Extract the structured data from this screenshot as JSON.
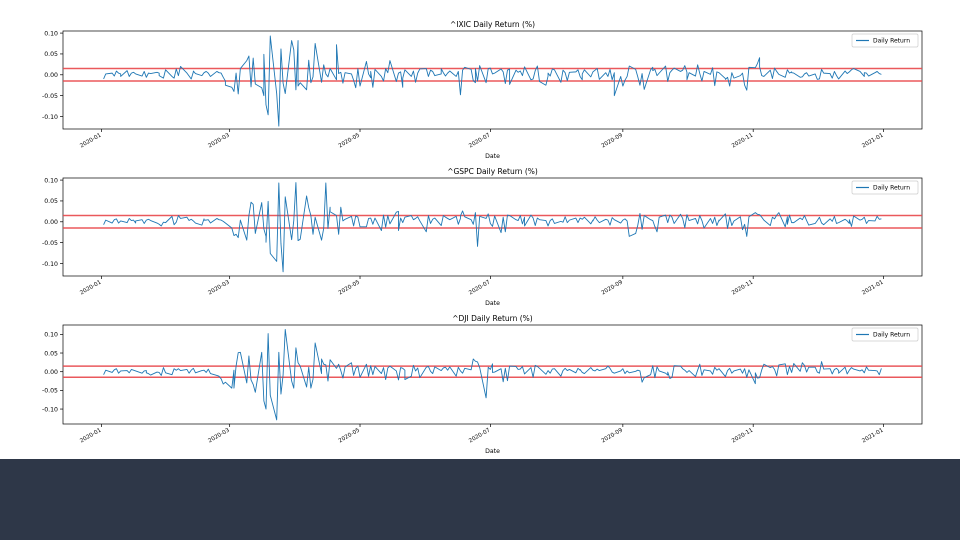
{
  "colors": {
    "line": "#1f77b4",
    "threshold": "#e8474b",
    "footer": "#2e3748",
    "axis": "#000000"
  },
  "chart_data": [
    {
      "type": "line",
      "title": "^IXIC Daily Return (%)",
      "xlabel": "Date",
      "ylabel": "",
      "legend": "Daily Return",
      "legend_position": "top-right",
      "grid": false,
      "x_ticks": [
        "2020-01",
        "2020-03",
        "2020-05",
        "2020-07",
        "2020-09",
        "2020-11",
        "2021-01"
      ],
      "y_ticks": [
        "0.10",
        "0.05",
        "0.00",
        "-0.05",
        "-0.10"
      ],
      "xlim": [
        "2019-12-14",
        "2021-01-19"
      ],
      "ylim": [
        -0.13,
        0.105
      ],
      "thresholds": [
        0.015,
        -0.015
      ],
      "start_date": "2020-01-02",
      "end_date": "2020-12-31",
      "values": [
        -0.01,
        0.002,
        0.004,
        -0.003,
        0.009,
        0.004,
        0.002,
        -0.004,
        0.01,
        -0.004,
        0.004,
        0.006,
        0.002,
        -0.003,
        0.008,
        -0.006,
        0.004,
        0.003,
        0.006,
        0.004,
        -0.002,
        -0.005,
        -0.008,
        0.012,
        -0.004,
        -0.008,
        0.014,
        -0.002,
        0.02,
        0.004,
        -0.003,
        -0.01,
        0.007,
        0.009,
        0.003,
        -0.002,
        0.005,
        0.008,
        0.004,
        -0.004,
        0.008,
        0.005,
        0.004,
        -0.006,
        -0.015,
        -0.025,
        -0.03,
        -0.04,
        0.004,
        -0.046,
        0.015,
        0.034,
        0.045,
        -0.029,
        0.04,
        -0.022,
        -0.031,
        -0.05,
        0.049,
        -0.072,
        -0.096,
        0.093,
        -0.045,
        -0.123,
        0.062,
        -0.02,
        -0.045,
        0.082,
        0.06,
        -0.036,
        0.082,
        -0.027,
        -0.019,
        -0.036,
        0.035,
        -0.019,
        -0.005,
        0.075,
        -0.018,
        0.024,
        0.002,
        -0.005,
        0.015,
        -0.012,
        0.072,
        0.003,
        0.006,
        -0.02,
        0.005,
        0.002,
        -0.013,
        -0.031,
        0.015,
        -0.027,
        0.032,
        0.002,
        -0.007,
        0.008,
        -0.03,
        0.013,
        -0.004,
        -0.015,
        0.015,
        0.005,
        0.034,
        -0.016,
        0.004,
        0.007,
        -0.03,
        -0.008,
        0.012,
        -0.004,
        0.009,
        -0.018,
        0.004,
        0.014,
        0.015,
        -0.004,
        0.011,
        0.008,
        -0.002,
        0.002,
        0.015,
        0.005,
        -0.003,
        0.004,
        0.009,
        -0.004,
        0.008,
        -0.048,
        0.011,
        0.018,
        0.013,
        -0.014,
        -0.019,
        0.015,
        -0.015,
        0.022,
        -0.019,
        0.015,
        0.016,
        0.002,
        0.004,
        0.014,
        0.007,
        -0.021,
        0.011,
        0.014,
        -0.023,
        0.011,
        0.006,
        0.009,
        -0.002,
        0.019,
        -0.012,
        -0.01,
        0.01,
        0.021,
        -0.016,
        -0.025,
        -0.003,
        0.004,
        -0.003,
        0.014,
        0.012,
        -0.018,
        0.011,
        0.005,
        -0.014,
        0.006,
        0.007,
        0.012,
        -0.004,
        -0.012,
        0.002,
        0.012,
        -0.005,
        0.007,
        0.011,
        0.015,
        -0.011,
        0.005,
        -0.004,
        0.013,
        -0.012,
        0.005,
        -0.05,
        -0.004,
        -0.027,
        -0.013,
        -0.004,
        0.021,
        0.013,
        -0.005,
        -0.025,
        0.003,
        -0.035,
        0.012,
        0.018,
        0.01,
        0.013,
        -0.002,
        0.004,
        0.021,
        -0.016,
        0.005,
        0.011,
        0.016,
        0.008,
        0.011,
        0.022,
        0.006,
        -0.012,
        0.005,
        -0.003,
        0.024,
        0.003,
        -0.015,
        0.008,
        0.001,
        0.017,
        -0.026,
        0.007,
        0.005,
        -0.009,
        -0.011,
        -0.006,
        -0.027,
        0.005,
        -0.008,
        -0.002,
        0.004,
        -0.025,
        -0.037,
        0.018,
        0.017,
        0.027,
        0.041,
        0.019,
        -0.002,
        -0.004,
        0.011,
        -0.009,
        0.016,
        0.008,
        0.001,
        -0.006,
        0.012,
        0.004,
        0.007,
        0.005,
        0.004,
        -0.006,
        -0.005,
        0.002,
        0.005,
        -0.003,
        0.002,
        -0.011,
        -0.01,
        0.013,
        0.004,
        0.003,
        0.002,
        -0.008,
        0.008,
        -0.002,
        -0.01,
        0.009,
        0.003,
        0.007,
        0.012,
        0.015,
        0.008,
        0.002,
        -0.004,
        0.005,
        0.004,
        -0.003,
        0.005,
        0.008,
        0.003,
        0.001
      ],
      "series": [
        {
          "name": "Daily Return"
        }
      ]
    },
    {
      "type": "line",
      "title": "^GSPC Daily Return (%)",
      "xlabel": "Date",
      "ylabel": "",
      "legend": "Daily Return",
      "legend_position": "top-right",
      "grid": false,
      "x_ticks": [
        "2020-01",
        "2020-03",
        "2020-05",
        "2020-07",
        "2020-09",
        "2020-11",
        "2021-01"
      ],
      "y_ticks": [
        "0.10",
        "0.05",
        "0.00",
        "-0.05",
        "-0.10"
      ],
      "xlim": [
        "2019-12-14",
        "2021-01-19"
      ],
      "ylim": [
        -0.13,
        0.105
      ],
      "thresholds": [
        0.015,
        -0.015
      ],
      "start_date": "2020-01-02",
      "end_date": "2020-12-31",
      "values": [
        -0.007,
        0.004,
        -0.003,
        0.005,
        0.007,
        -0.003,
        0.002,
        -0.002,
        0.008,
        0.003,
        0.004,
        -0.003,
        0.002,
        0.005,
        -0.004,
        0.004,
        0.006,
        0.003,
        -0.003,
        -0.006,
        -0.01,
        -0.001,
        -0.002,
        0.013,
        -0.007,
        -0.001,
        0.015,
        0.008,
        0.011,
        0.003,
        0.006,
        0.002,
        -0.003,
        -0.008,
        0.007,
        0.004,
        0.004,
        0.005,
        -0.003,
        0.008,
        0.005,
        0.004,
        0.001,
        -0.003,
        -0.015,
        -0.033,
        -0.03,
        -0.038,
        0.004,
        -0.044,
        0.015,
        0.047,
        0.042,
        -0.028,
        0.046,
        -0.017,
        -0.035,
        -0.049,
        0.049,
        -0.076,
        -0.095,
        0.093,
        -0.052,
        -0.12,
        0.06,
        -0.043,
        0.003,
        0.094,
        -0.045,
        -0.042,
        0.062,
        0.034,
        0.015,
        -0.03,
        0.011,
        -0.044,
        -0.016,
        0.093,
        -0.016,
        0.035,
        0.024,
        0.015,
        -0.03,
        0.035,
        0.002,
        0.006,
        0.013,
        -0.01,
        0.014,
        0.011,
        -0.012,
        -0.012,
        0.008,
        0.009,
        -0.006,
        0.009,
        -0.021,
        0.016,
        -0.013,
        0.015,
        -0.005,
        0.023,
        0.025,
        -0.021,
        0.009,
        -0.002,
        0.011,
        0.015,
        0.005,
        0.008,
        0.012,
        0.002,
        -0.024,
        0.015,
        -0.004,
        0.006,
        0.009,
        -0.009,
        0.015,
        0.011,
        0.008,
        0.005,
        0.013,
        -0.006,
        0.008,
        0.014,
        0.026,
        0.012,
        0.005,
        -0.006,
        0.022,
        -0.059,
        0.013,
        0.008,
        0.019,
        -0.004,
        -0.011,
        0.014,
        -0.026,
        0.011,
        -0.024,
        0.016,
        0.015,
        0.005,
        0.003,
        0.015,
        -0.005,
        0.011,
        -0.01,
        0.016,
        0.009,
        -0.009,
        0.009,
        0.005,
        0.003,
        -0.01,
        0.003,
        0.007,
        -0.004,
        0.001,
        -0.001,
        0.012,
        -0.002,
        0.004,
        0.009,
        -0.002,
        0.009,
        0.006,
        0.011,
        -0.005,
        0.004,
        0.002,
        0.012,
        0.004,
        -0.002,
        0.006,
        0.004,
        -0.008,
        0.01,
        0.005,
        -0.003,
        0.004,
        0.007,
        0.002,
        -0.035,
        -0.028,
        -0.008,
        0.02,
        -0.018,
        0.015,
        0.005,
        0.003,
        -0.012,
        -0.011,
        -0.024,
        0.011,
        0.016,
        -0.002,
        0.016,
        0.011,
        -0.004,
        0.018,
        0.008,
        -0.014,
        0.017,
        0.003,
        0.008,
        -0.005,
        0.015,
        0.003,
        -0.015,
        0.008,
        -0.004,
        0.011,
        -0.009,
        0.004,
        0.002,
        0.019,
        -0.016,
        0.012,
        -0.009,
        0.002,
        0.012,
        -0.019,
        -0.006,
        -0.035,
        0.012,
        0.022,
        0.018,
        0.017,
        0.011,
        0.004,
        -0.009,
        0.011,
        0.007,
        0.016,
        0.022,
        -0.012,
        0.012,
        -0.006,
        0.016,
        -0.002,
        -0.002,
        0.009,
        0.005,
        0.015,
        0.003,
        -0.008,
        -0.004,
        0.003,
        0.011,
        -0.003,
        -0.007,
        0.007,
        0.001,
        0.013,
        -0.004,
        -0.002,
        0.006,
        0.002,
        -0.004,
        0.005,
        -0.011,
        0.014,
        0.004,
        0.006,
        0.011,
        -0.004,
        0.003,
        0.002,
        0.013,
        0.006,
        0.007
      ]
    },
    {
      "type": "line",
      "title": "^DJI Daily Return (%)",
      "xlabel": "Date",
      "ylabel": "",
      "legend": "Daily Return",
      "legend_position": "top-right",
      "grid": false,
      "x_ticks": [
        "2020-01",
        "2020-03",
        "2020-05",
        "2020-07",
        "2020-09",
        "2020-11",
        "2021-01"
      ],
      "y_ticks": [
        "0.10",
        "0.05",
        "0.00",
        "-0.05",
        "-0.10"
      ],
      "xlim": [
        "2019-12-14",
        "2021-01-19"
      ],
      "ylim": [
        -0.14,
        0.125
      ],
      "thresholds": [
        0.015,
        -0.015
      ],
      "start_date": "2020-01-02",
      "end_date": "2020-12-31",
      "values": [
        -0.008,
        0.004,
        -0.002,
        0.005,
        0.008,
        -0.004,
        0.002,
        0.003,
        -0.003,
        0.006,
        0.004,
        0.002,
        -0.004,
        0.002,
        0.003,
        -0.003,
        -0.005,
        -0.009,
        -0.001,
        -0.002,
        -0.01,
        0.011,
        -0.003,
        -0.008,
        0.008,
        0.004,
        0.008,
        0.003,
        0.006,
        -0.004,
        0.004,
        0.009,
        -0.003,
        0.003,
        0.004,
        -0.002,
        0.007,
        -0.005,
        -0.01,
        -0.012,
        -0.019,
        -0.033,
        -0.028,
        -0.044,
        0.004,
        -0.044,
        0.015,
        0.051,
        0.052,
        -0.03,
        0.042,
        -0.022,
        -0.034,
        -0.055,
        0.052,
        -0.078,
        -0.1,
        0.102,
        -0.063,
        -0.129,
        0.052,
        -0.06,
        -0.009,
        0.113,
        -0.025,
        -0.044,
        0.064,
        0.024,
        0.015,
        -0.041,
        0.012,
        -0.044,
        -0.02,
        0.077,
        -0.005,
        0.034,
        0.02,
        0.018,
        -0.025,
        0.032,
        0.009,
        0.02,
        0.003,
        -0.017,
        0.013,
        0.024,
        -0.01,
        0.009,
        0.015,
        -0.015,
        0.02,
        -0.012,
        0.016,
        -0.008,
        0.014,
        -0.005,
        0.011,
        -0.021,
        0.01,
        0.015,
        0.002,
        -0.022,
        0.011,
        0.009,
        0.004,
        -0.021,
        -0.012,
        0.017,
        0.002,
        0.01,
        -0.016,
        0.012,
        0.014,
        0.001,
        -0.005,
        0.013,
        0.003,
        0.01,
        0.012,
        0.004,
        0.013,
        -0.012,
        0.012,
        0.002,
        -0.004,
        0.009,
        0.005,
        0.034,
        0.028,
        0.026,
        0.011,
        -0.07,
        0.012,
        0.006,
        0.021,
        -0.002,
        -0.001,
        0.008,
        -0.027,
        0.009,
        -0.024,
        0.015,
        0.014,
        0.006,
        0.007,
        0.014,
        -0.006,
        0.011,
        -0.015,
        0.017,
        0.014,
        0.009,
        -0.007,
        0.003,
        -0.004,
        0.007,
        0.008,
        -0.012,
        0.003,
        0.009,
        0.003,
        0.006,
        -0.003,
        0.009,
        0.004,
        0.006,
        -0.002,
        -0.005,
        0.011,
        0.004,
        0.002,
        0.007,
        0.003,
        0.008,
        0.015,
        0.009,
        -0.001,
        -0.004,
        0.002,
        0.008,
        -0.005,
        0.002,
        -0.003,
        0.001,
        0.004,
        0.002,
        -0.028,
        -0.016,
        -0.008,
        0.016,
        -0.016,
        0.013,
        0.002,
        -0.004,
        -0.009,
        -0.001,
        -0.018,
        -0.015,
        0.016,
        0.015,
        0.008,
        0.004,
        -0.002,
        0.003,
        -0.013,
        0.004,
        0.02,
        -0.01,
        0.005,
        0.002,
        -0.007,
        0.012,
        0.004,
        0.008,
        -0.013,
        0.003,
        0.009,
        -0.004,
        0.002,
        0.007,
        -0.004,
        0.008,
        -0.015,
        0.005,
        -0.032,
        -0.003,
        -0.017,
        -0.016,
        0.005,
        0.02,
        0.011,
        0.014,
        0.006,
        -0.011,
        0.018,
        0.021,
        -0.008,
        0.014,
        -0.002,
        0.022,
        0.001,
        0.024,
        0.017,
        -0.001,
        0.012,
        0.012,
        -0.001,
        -0.004,
        0.027,
        0.007,
        0.008,
        -0.006,
        0.006,
        0.009,
        0.003,
        -0.004,
        0.012,
        -0.006,
        0.004,
        0.011,
        0.007,
        0.002,
        0.005,
        -0.003,
        0.013,
        0.004,
        0.003,
        0.002,
        -0.008,
        0.009
      ]
    }
  ]
}
